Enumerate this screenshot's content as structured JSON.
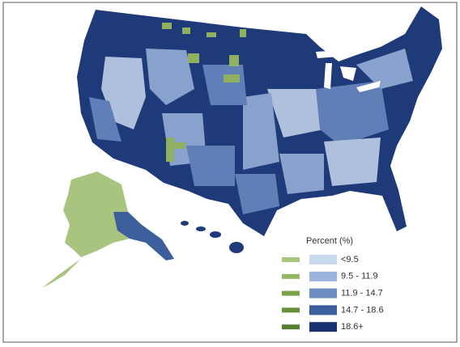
{
  "legend": {
    "title": "Percent (%)",
    "items": [
      {
        "label": "<9.5",
        "color": "#c9d8ee",
        "alaska_color": "#a9c47f"
      },
      {
        "label": "9.5 - 11.9",
        "color": "#9cb3dc",
        "alaska_color": "#95b566"
      },
      {
        "label": "11.9 - 14.7",
        "color": "#6c8cc2",
        "alaska_color": "#7ba24a"
      },
      {
        "label": "14.7 - 18.6",
        "color": "#3c5e9c",
        "alaska_color": "#668f38"
      },
      {
        "label": "18.6+",
        "color": "#1a3370",
        "alaska_color": "#557f2d"
      }
    ]
  }
}
